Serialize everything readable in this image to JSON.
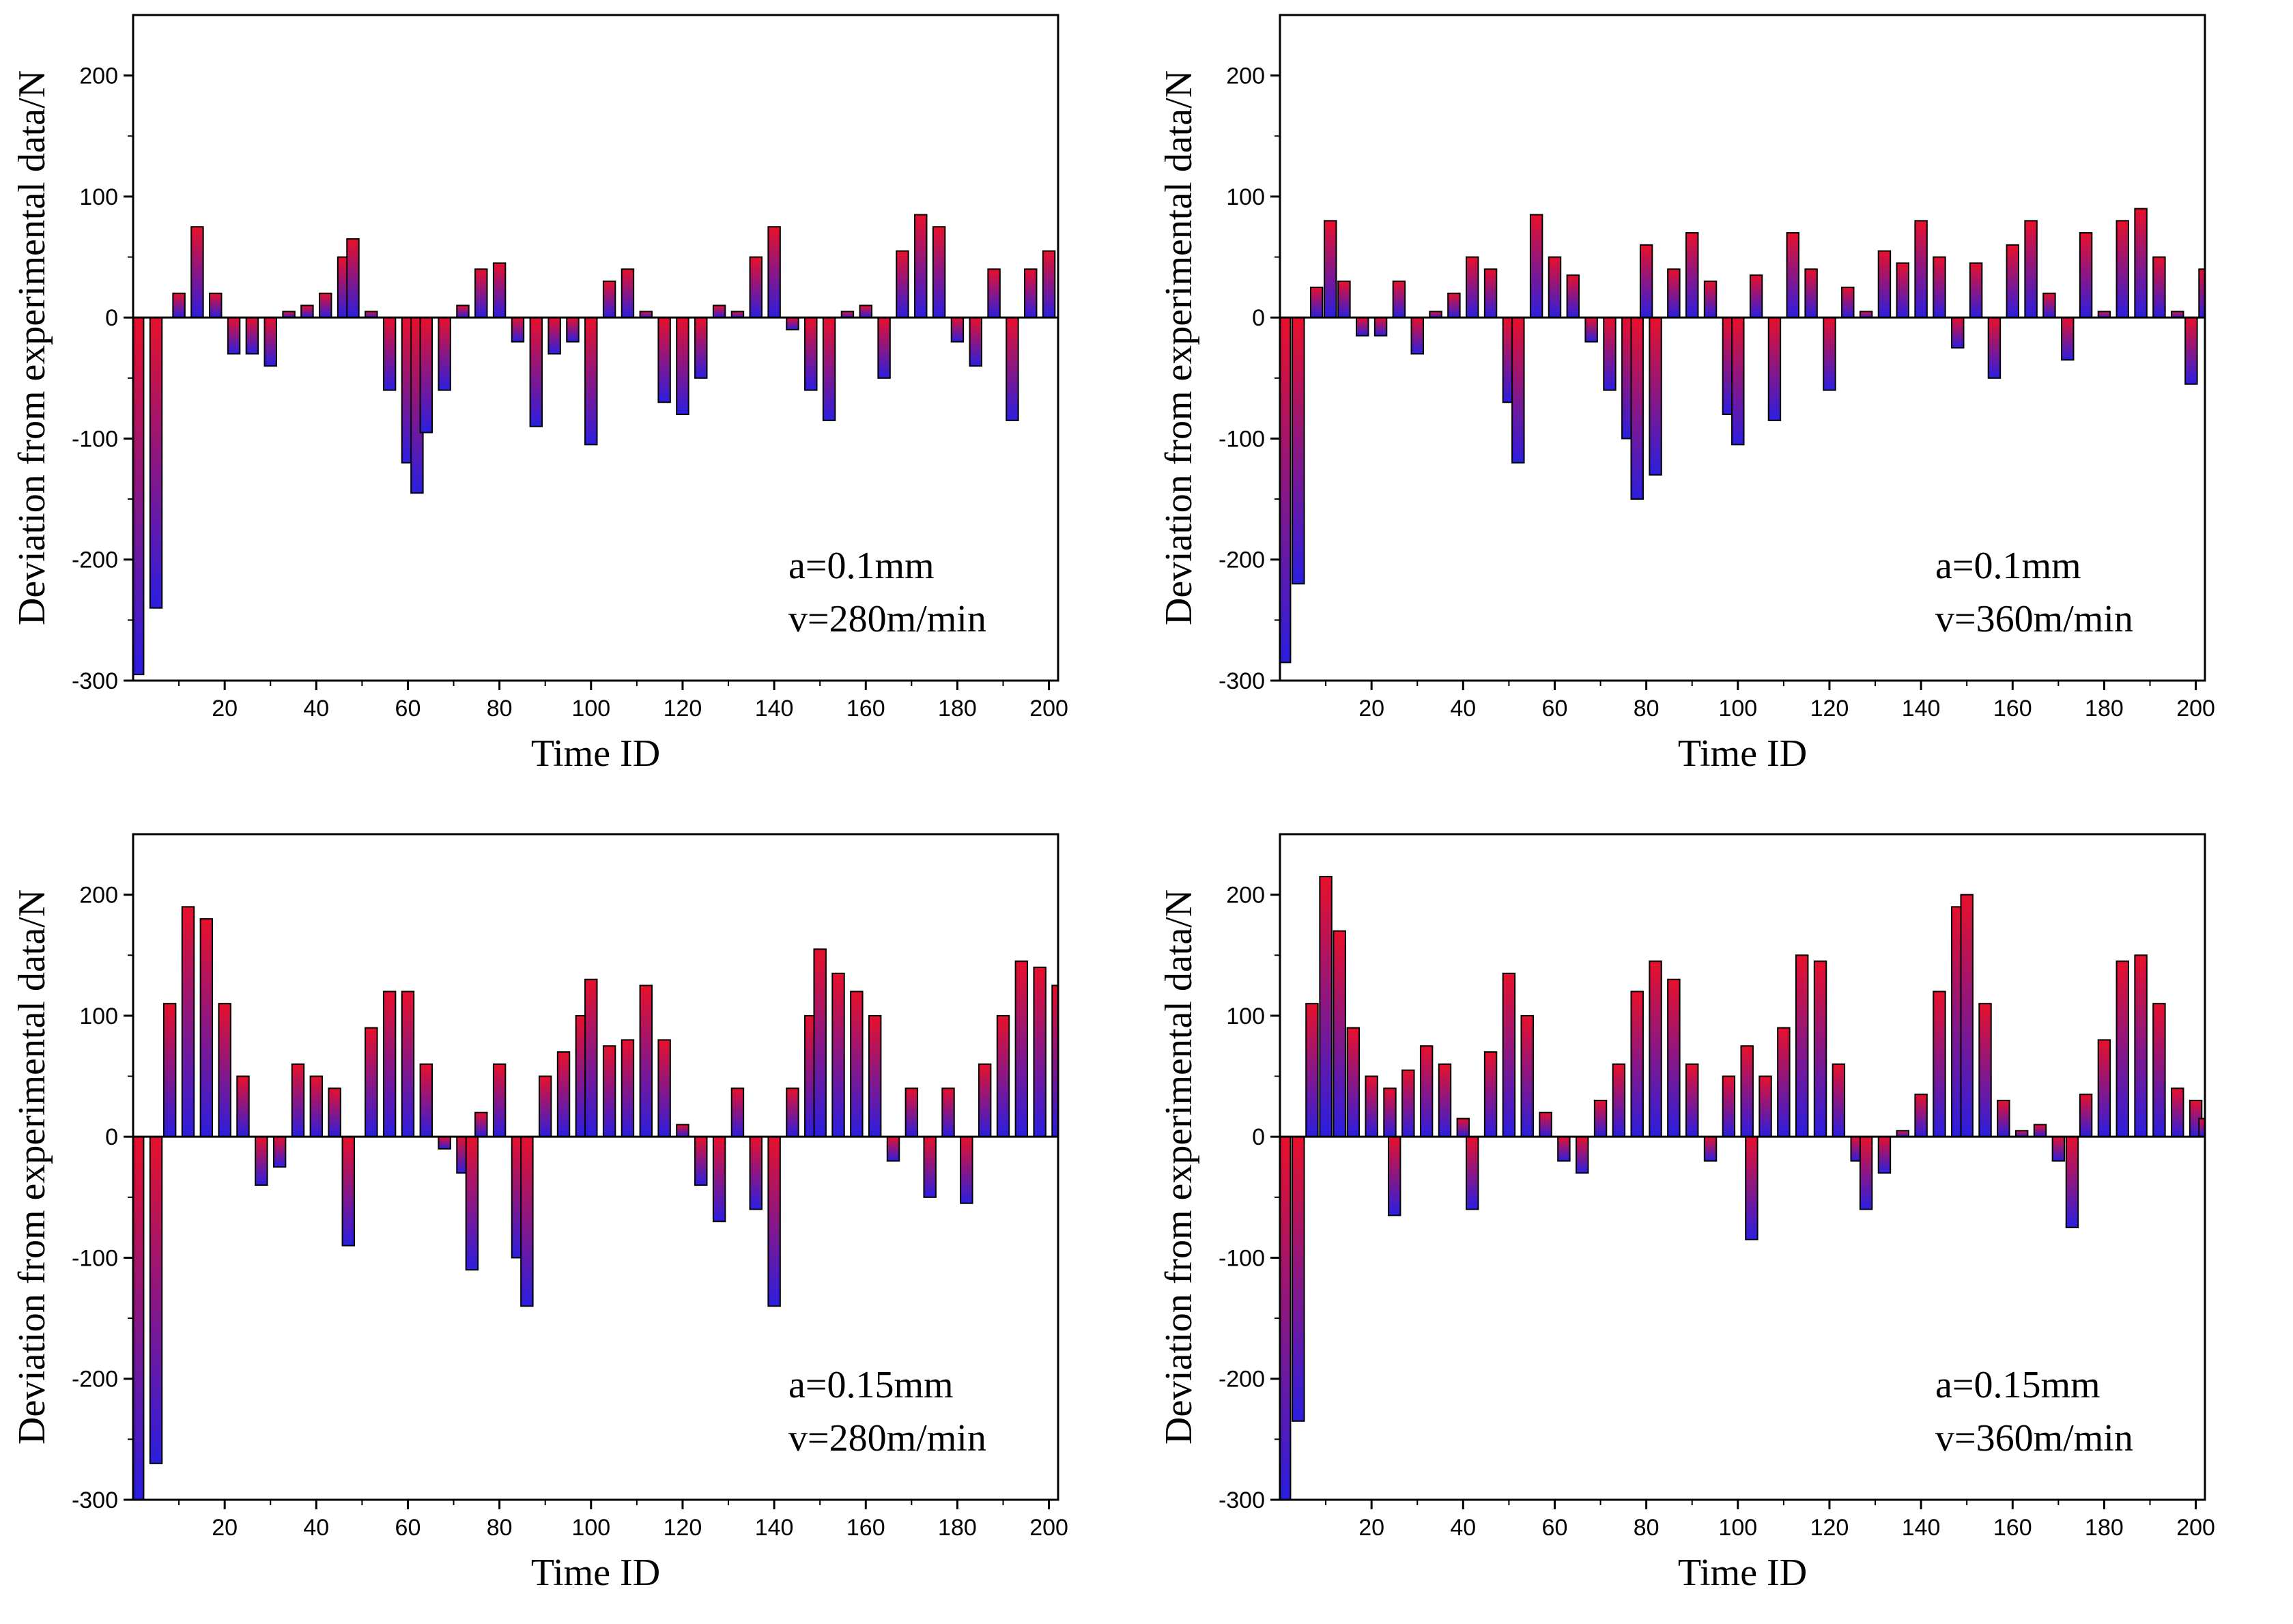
{
  "chart_data": [
    {
      "type": "bar",
      "xlabel": "Time ID",
      "ylabel": "Deviation from experimental data/N",
      "ylim": [
        -300,
        250
      ],
      "yticks": [
        -300,
        -200,
        -100,
        0,
        100,
        200
      ],
      "xlim": [
        0,
        202
      ],
      "xticks": [
        20,
        40,
        60,
        80,
        100,
        120,
        140,
        160,
        180,
        200
      ],
      "annotation": [
        "a=0.1mm",
        "v=280m/min"
      ],
      "gradient_colors": {
        "top": "#e8102a",
        "bottom": "#2b1ee0"
      },
      "x": [
        1,
        5,
        10,
        14,
        18,
        22,
        26,
        30,
        34,
        38,
        42,
        46,
        48,
        52,
        56,
        60,
        62,
        64,
        68,
        72,
        76,
        80,
        84,
        88,
        92,
        96,
        100,
        104,
        108,
        112,
        116,
        120,
        124,
        128,
        132,
        136,
        140,
        144,
        148,
        152,
        156,
        160,
        164,
        168,
        172,
        176,
        180,
        184,
        188,
        192,
        196,
        200
      ],
      "values": [
        -295,
        -240,
        20,
        75,
        20,
        -30,
        -30,
        -40,
        5,
        10,
        20,
        50,
        65,
        5,
        -60,
        -120,
        -145,
        -95,
        -60,
        10,
        40,
        45,
        -20,
        -90,
        -30,
        -20,
        -105,
        30,
        40,
        5,
        -70,
        -80,
        -50,
        10,
        5,
        50,
        75,
        -10,
        -60,
        -85,
        5,
        10,
        -50,
        55,
        85,
        75,
        -20,
        -40,
        40,
        -85,
        40,
        55
      ]
    },
    {
      "type": "bar",
      "xlabel": "Time ID",
      "ylabel": "Deviation from experimental data/N",
      "ylim": [
        -300,
        250
      ],
      "yticks": [
        -300,
        -200,
        -100,
        0,
        100,
        200
      ],
      "xlim": [
        0,
        202
      ],
      "xticks": [
        20,
        40,
        60,
        80,
        100,
        120,
        140,
        160,
        180,
        200
      ],
      "annotation": [
        "a=0.1mm",
        "v=360m/min"
      ],
      "gradient_colors": {
        "top": "#e8102a",
        "bottom": "#2b1ee0"
      },
      "x": [
        1,
        4,
        8,
        11,
        14,
        18,
        22,
        26,
        30,
        34,
        38,
        42,
        46,
        50,
        52,
        56,
        60,
        64,
        68,
        72,
        76,
        78,
        80,
        82,
        86,
        90,
        94,
        98,
        100,
        104,
        108,
        112,
        116,
        120,
        124,
        128,
        132,
        136,
        140,
        144,
        148,
        152,
        156,
        160,
        164,
        168,
        172,
        176,
        180,
        184,
        188,
        192,
        196,
        199,
        202
      ],
      "values": [
        -285,
        -220,
        25,
        80,
        30,
        -15,
        -15,
        30,
        -30,
        5,
        20,
        50,
        40,
        -70,
        -120,
        85,
        50,
        35,
        -20,
        -60,
        -100,
        -150,
        60,
        -130,
        40,
        70,
        30,
        -80,
        -105,
        35,
        -85,
        70,
        40,
        -60,
        25,
        5,
        55,
        45,
        80,
        50,
        -25,
        45,
        -50,
        60,
        80,
        20,
        -35,
        70,
        5,
        80,
        90,
        50,
        5,
        -55,
        40
      ]
    },
    {
      "type": "bar",
      "xlabel": "Time ID",
      "ylabel": "Deviation from experimental data/N",
      "ylim": [
        -300,
        250
      ],
      "yticks": [
        -300,
        -200,
        -100,
        0,
        100,
        200
      ],
      "xlim": [
        0,
        202
      ],
      "xticks": [
        20,
        40,
        60,
        80,
        100,
        120,
        140,
        160,
        180,
        200
      ],
      "annotation": [
        "a=0.15mm",
        "v=280m/min"
      ],
      "gradient_colors": {
        "top": "#e8102a",
        "bottom": "#2b1ee0"
      },
      "x": [
        1,
        5,
        8,
        12,
        16,
        20,
        24,
        28,
        32,
        36,
        40,
        44,
        47,
        52,
        56,
        60,
        64,
        68,
        72,
        74,
        76,
        80,
        84,
        86,
        90,
        94,
        98,
        100,
        104,
        108,
        112,
        116,
        120,
        124,
        128,
        132,
        136,
        140,
        144,
        148,
        150,
        154,
        158,
        162,
        166,
        170,
        174,
        178,
        182,
        186,
        190,
        194,
        198,
        202
      ],
      "values": [
        -300,
        -270,
        110,
        190,
        180,
        110,
        50,
        -40,
        -25,
        60,
        50,
        40,
        -90,
        90,
        120,
        120,
        60,
        -10,
        -30,
        -110,
        20,
        60,
        -100,
        -140,
        50,
        70,
        100,
        130,
        75,
        80,
        125,
        80,
        10,
        -40,
        -70,
        40,
        -60,
        -140,
        40,
        100,
        155,
        135,
        120,
        100,
        -20,
        40,
        -50,
        40,
        -55,
        60,
        100,
        145,
        140,
        125
      ]
    },
    {
      "type": "bar",
      "xlabel": "Time ID",
      "ylabel": "Deviation from experimental data/N",
      "ylim": [
        -300,
        250
      ],
      "yticks": [
        -300,
        -200,
        -100,
        0,
        100,
        200
      ],
      "xlim": [
        0,
        202
      ],
      "xticks": [
        20,
        40,
        60,
        80,
        100,
        120,
        140,
        160,
        180,
        200
      ],
      "annotation": [
        "a=0.15mm",
        "v=360m/min"
      ],
      "gradient_colors": {
        "top": "#e8102a",
        "bottom": "#2b1ee0"
      },
      "x": [
        1,
        4,
        7,
        10,
        13,
        16,
        20,
        24,
        25,
        28,
        32,
        36,
        40,
        42,
        46,
        50,
        54,
        58,
        62,
        66,
        70,
        74,
        78,
        82,
        86,
        90,
        94,
        98,
        102,
        103,
        106,
        110,
        114,
        118,
        122,
        126,
        128,
        132,
        136,
        140,
        144,
        148,
        150,
        154,
        158,
        162,
        166,
        170,
        173,
        176,
        180,
        184,
        188,
        192,
        196,
        200,
        202
      ],
      "values": [
        -300,
        -235,
        110,
        215,
        170,
        90,
        50,
        40,
        -65,
        55,
        75,
        60,
        15,
        -60,
        70,
        135,
        100,
        20,
        -20,
        -30,
        30,
        60,
        120,
        145,
        130,
        60,
        -20,
        50,
        75,
        -85,
        50,
        90,
        150,
        145,
        60,
        -20,
        -60,
        -30,
        5,
        35,
        120,
        190,
        200,
        110,
        30,
        5,
        10,
        -20,
        -75,
        35,
        80,
        145,
        150,
        110,
        40,
        30,
        15
      ]
    }
  ]
}
